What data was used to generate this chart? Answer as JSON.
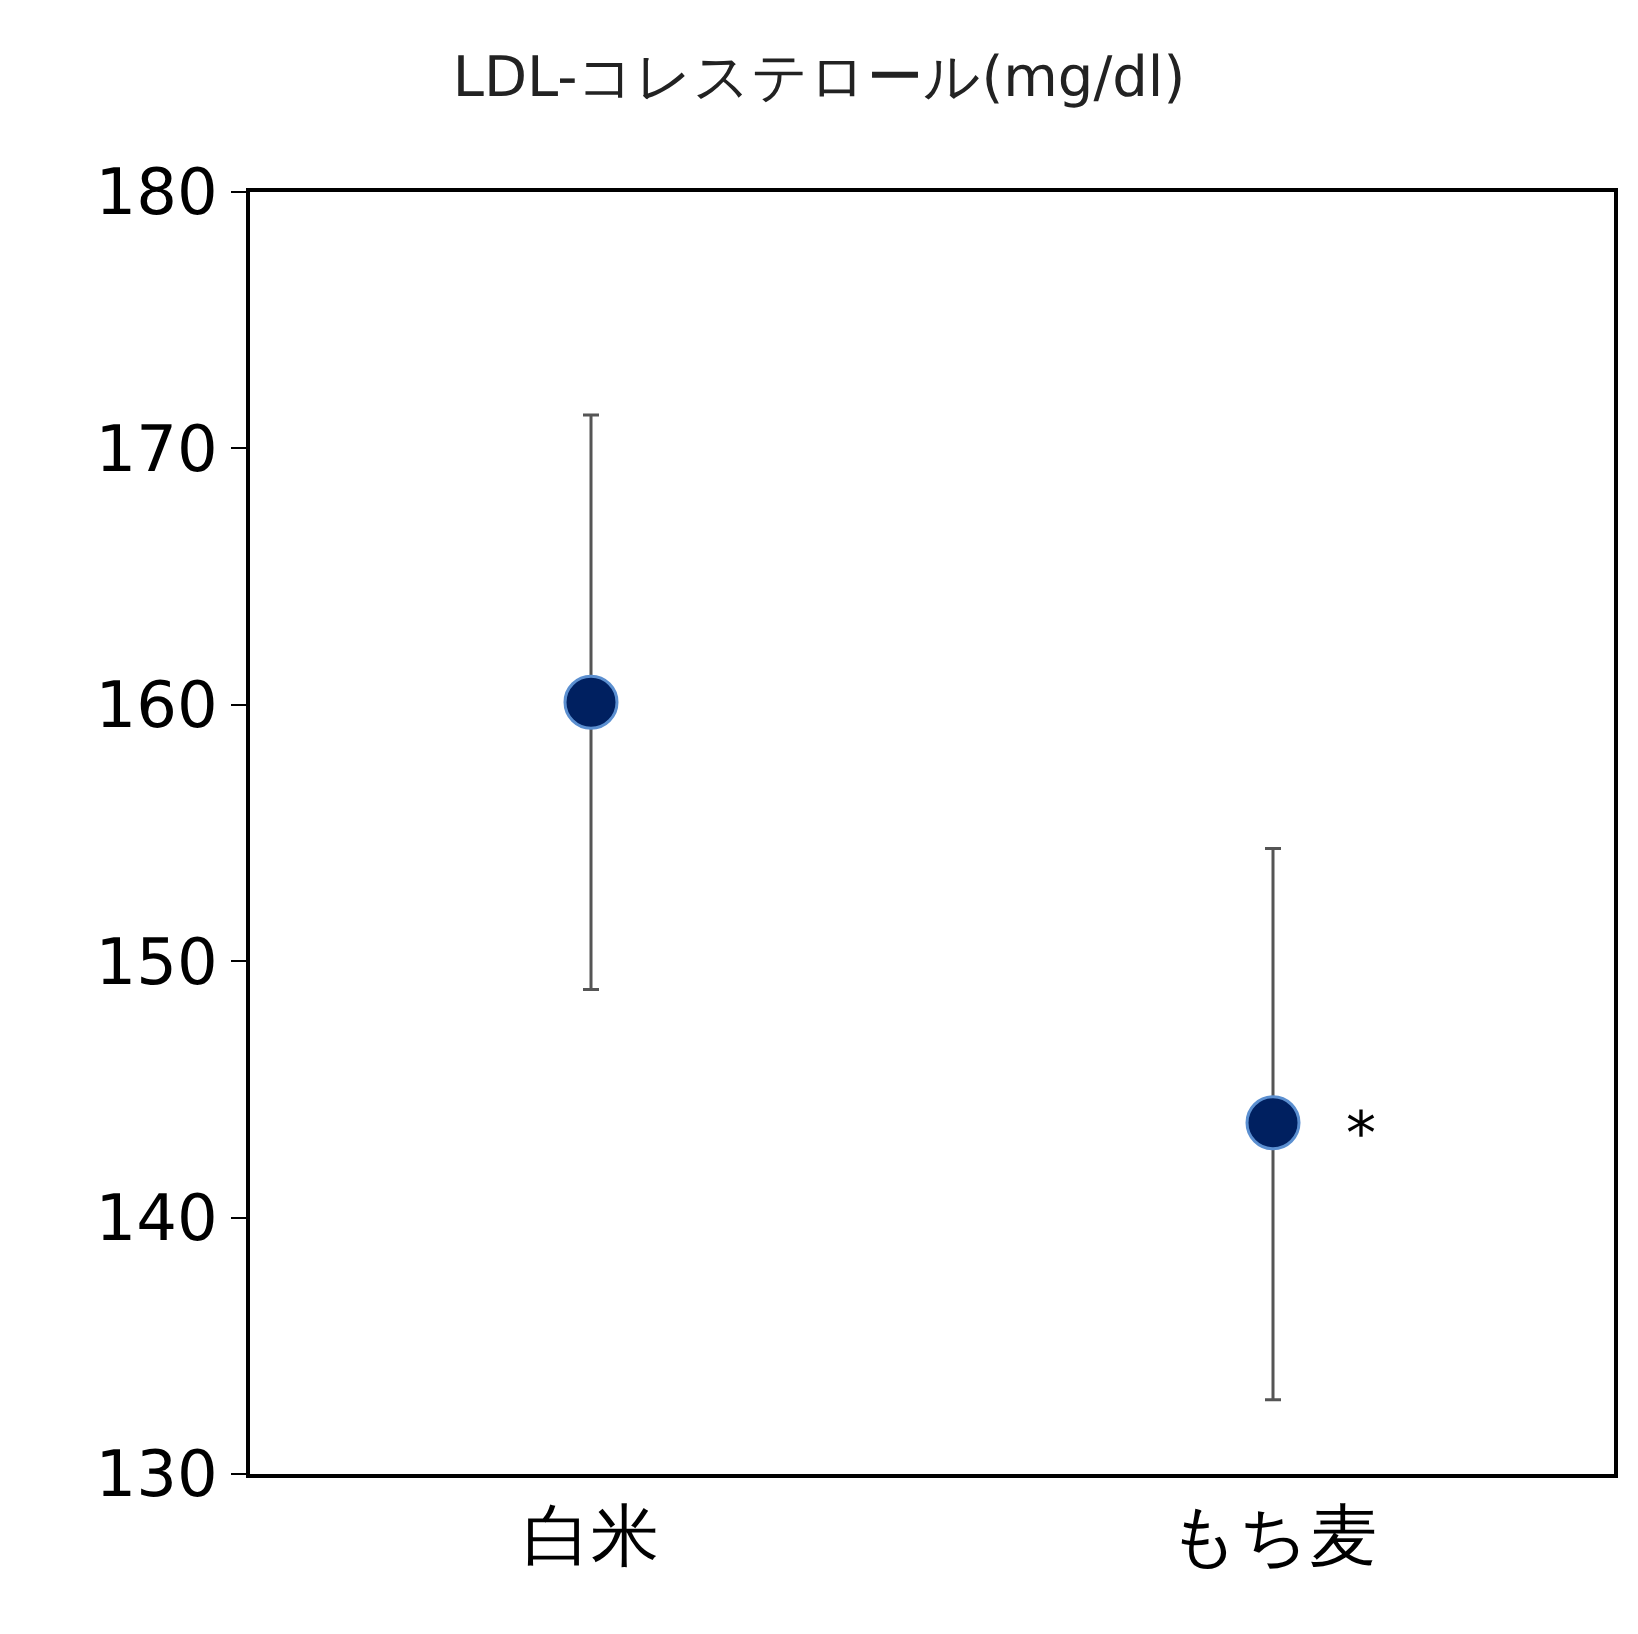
{
  "chart_data": {
    "type": "scatter",
    "title": "LDL-コレステロール(mg/dl)",
    "categories": [
      "白米",
      "もち麦"
    ],
    "series": [
      {
        "color": "#002060",
        "values": [
          160.1,
          143.7
        ],
        "errors": [
          [
            148.9,
            171.3
          ],
          [
            132.9,
            154.4
          ]
        ]
      }
    ],
    "ylim": [
      130,
      180
    ],
    "yticks": [
      130,
      140,
      150,
      160,
      170,
      180
    ],
    "grid": false,
    "legend": false,
    "marker": "circle",
    "annotations": [
      {
        "text": "*",
        "x": "もち麦",
        "y": 143.7
      }
    ]
  }
}
